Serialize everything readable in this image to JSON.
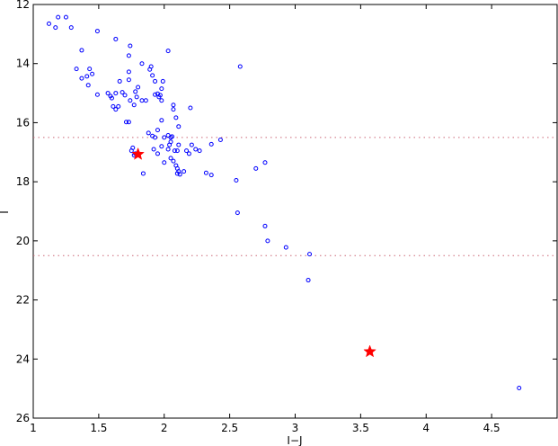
{
  "chart_data": {
    "type": "scatter",
    "title": "",
    "xlabel": "I−J",
    "ylabel": "I",
    "xlim": [
      1,
      5
    ],
    "ylim": [
      12,
      26
    ],
    "y_inverted": true,
    "grid": false,
    "legend": "none",
    "xticks": [
      "1",
      "1.5",
      "2",
      "2.5",
      "3",
      "3.5",
      "4",
      "4.5"
    ],
    "xtick_values": [
      1,
      1.5,
      2,
      2.5,
      3,
      3.5,
      4,
      4.5
    ],
    "yticks": [
      "12",
      "14",
      "16",
      "18",
      "20",
      "22",
      "24",
      "26"
    ],
    "ytick_values": [
      12,
      14,
      16,
      18,
      20,
      22,
      24,
      26
    ],
    "hlines": [
      {
        "y": 16.5,
        "color": "#cc6677",
        "style": "dotted"
      },
      {
        "y": 20.5,
        "color": "#cc6677",
        "style": "dotted"
      }
    ],
    "series": [
      {
        "marker": "circle",
        "color": "#0000ff",
        "points": [
          [
            1.12,
            12.65
          ],
          [
            1.17,
            12.78
          ],
          [
            1.19,
            12.43
          ],
          [
            1.25,
            12.43
          ],
          [
            1.29,
            12.78
          ],
          [
            1.49,
            12.9
          ],
          [
            1.63,
            13.17
          ],
          [
            1.74,
            13.4
          ],
          [
            2.03,
            13.57
          ],
          [
            1.73,
            13.73
          ],
          [
            1.37,
            13.55
          ],
          [
            1.33,
            14.18
          ],
          [
            1.37,
            14.5
          ],
          [
            1.41,
            14.43
          ],
          [
            1.43,
            14.18
          ],
          [
            1.45,
            14.35
          ],
          [
            1.42,
            14.73
          ],
          [
            1.49,
            15.05
          ],
          [
            1.57,
            15.0
          ],
          [
            1.59,
            15.1
          ],
          [
            1.6,
            15.17
          ],
          [
            1.63,
            15.0
          ],
          [
            1.66,
            14.6
          ],
          [
            1.68,
            14.97
          ],
          [
            1.7,
            15.07
          ],
          [
            1.73,
            14.55
          ],
          [
            1.73,
            14.28
          ],
          [
            1.74,
            15.25
          ],
          [
            1.65,
            15.45
          ],
          [
            1.63,
            15.55
          ],
          [
            1.61,
            15.45
          ],
          [
            1.78,
            14.95
          ],
          [
            1.79,
            15.13
          ],
          [
            1.8,
            14.8
          ],
          [
            1.83,
            14.0
          ],
          [
            1.83,
            15.25
          ],
          [
            1.86,
            15.25
          ],
          [
            1.89,
            14.2
          ],
          [
            1.91,
            14.4
          ],
          [
            1.9,
            14.1
          ],
          [
            1.93,
            14.6
          ],
          [
            1.93,
            15.05
          ],
          [
            1.95,
            15.02
          ],
          [
            1.96,
            15.13
          ],
          [
            1.97,
            15.07
          ],
          [
            1.98,
            14.85
          ],
          [
            1.99,
            14.6
          ],
          [
            1.98,
            15.25
          ],
          [
            2.07,
            15.4
          ],
          [
            2.07,
            15.55
          ],
          [
            1.77,
            15.4
          ],
          [
            2.2,
            15.5
          ],
          [
            2.58,
            14.1
          ],
          [
            1.71,
            15.98
          ],
          [
            1.73,
            15.98
          ],
          [
            1.98,
            15.92
          ],
          [
            2.09,
            15.83
          ],
          [
            2.11,
            16.13
          ],
          [
            1.95,
            16.25
          ],
          [
            1.88,
            16.35
          ],
          [
            1.91,
            16.45
          ],
          [
            1.93,
            16.5
          ],
          [
            2.0,
            16.5
          ],
          [
            2.03,
            16.43
          ],
          [
            2.05,
            16.5
          ],
          [
            2.05,
            16.65
          ],
          [
            2.06,
            16.47
          ],
          [
            2.04,
            16.75
          ],
          [
            1.98,
            16.8
          ],
          [
            2.03,
            16.9
          ],
          [
            2.08,
            16.95
          ],
          [
            2.11,
            16.75
          ],
          [
            2.1,
            16.95
          ],
          [
            2.17,
            16.95
          ],
          [
            2.19,
            17.05
          ],
          [
            2.21,
            16.75
          ],
          [
            2.24,
            16.9
          ],
          [
            2.27,
            16.95
          ],
          [
            2.36,
            16.73
          ],
          [
            2.43,
            16.58
          ],
          [
            1.76,
            16.85
          ],
          [
            1.75,
            16.95
          ],
          [
            1.78,
            17.05
          ],
          [
            1.77,
            17.1
          ],
          [
            1.92,
            16.9
          ],
          [
            1.95,
            17.05
          ],
          [
            2.0,
            17.35
          ],
          [
            2.05,
            17.2
          ],
          [
            2.07,
            17.3
          ],
          [
            2.09,
            17.45
          ],
          [
            2.1,
            17.55
          ],
          [
            2.11,
            17.65
          ],
          [
            2.1,
            17.72
          ],
          [
            2.12,
            17.75
          ],
          [
            2.15,
            17.65
          ],
          [
            1.84,
            17.72
          ],
          [
            2.32,
            17.7
          ],
          [
            2.36,
            17.77
          ],
          [
            2.55,
            17.95
          ],
          [
            2.7,
            17.55
          ],
          [
            2.77,
            17.35
          ],
          [
            2.56,
            19.05
          ],
          [
            2.77,
            19.5
          ],
          [
            2.79,
            20.0
          ],
          [
            2.93,
            20.22
          ],
          [
            3.11,
            20.45
          ],
          [
            3.1,
            21.33
          ],
          [
            4.71,
            24.98
          ]
        ]
      },
      {
        "marker": "star",
        "color": "#ff0000",
        "points": [
          [
            1.8,
            17.07
          ],
          [
            3.57,
            23.75
          ]
        ]
      }
    ]
  }
}
